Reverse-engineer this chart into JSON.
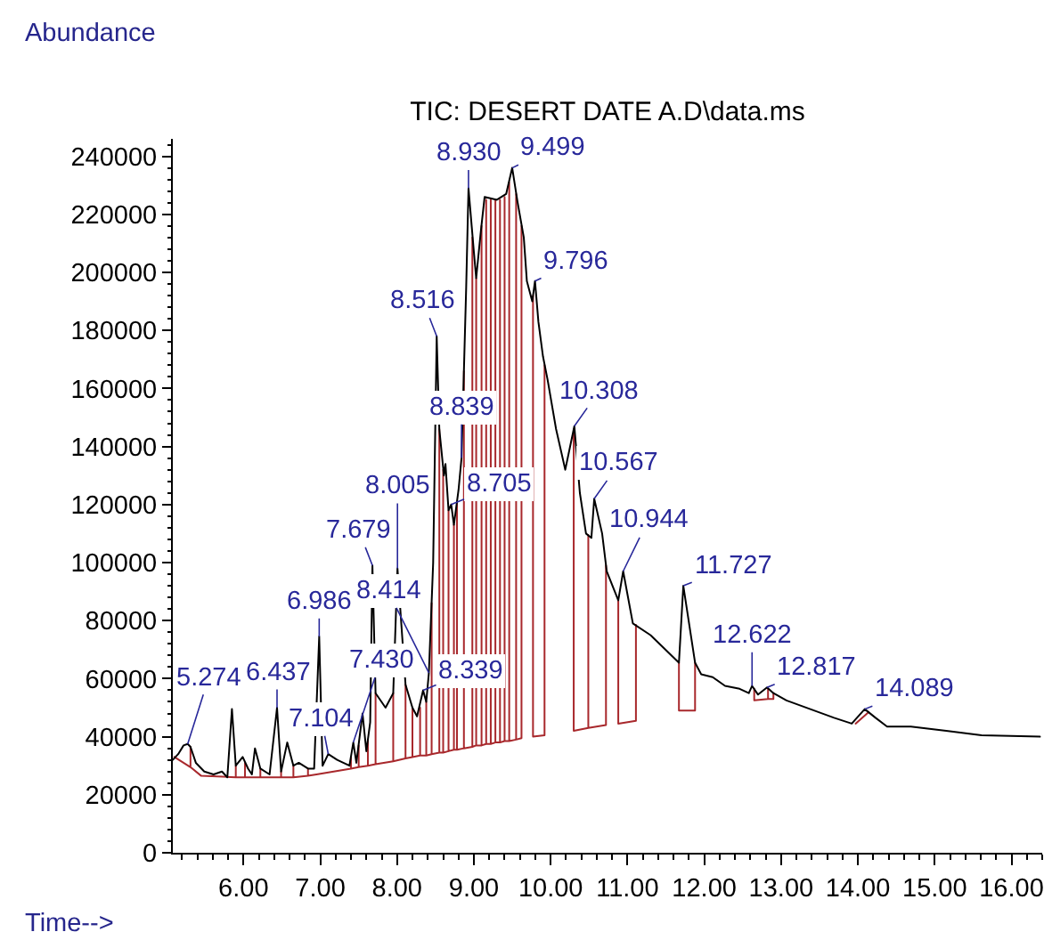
{
  "chart_data": {
    "type": "line",
    "title": "TIC: DESERT DATE A.D\\data.ms",
    "xlabel": "Time-->",
    "ylabel": "Abundance",
    "xlim": [
      5.08,
      16.4
    ],
    "xticks": [
      {
        "value": 6,
        "label": "6.00"
      },
      {
        "value": 7,
        "label": "7.00"
      },
      {
        "value": 8,
        "label": "8.00"
      },
      {
        "value": 9,
        "label": "9.00"
      },
      {
        "value": 10,
        "label": "10.00"
      },
      {
        "value": 11,
        "label": "11.00"
      },
      {
        "value": 12,
        "label": "12.00"
      },
      {
        "value": 13,
        "label": "13.00"
      },
      {
        "value": 14,
        "label": "14.00"
      },
      {
        "value": 15,
        "label": "15.00"
      },
      {
        "value": 16,
        "label": "16.00"
      }
    ],
    "ylim": [
      0,
      246000
    ],
    "yticks": [
      0,
      20000,
      40000,
      60000,
      80000,
      100000,
      120000,
      140000,
      160000,
      180000,
      200000,
      220000,
      240000
    ],
    "series": [
      {
        "color": "#000000",
        "x": [
          5.08,
          5.15,
          5.22,
          5.274,
          5.31,
          5.38,
          5.49,
          5.61,
          5.72,
          5.79,
          5.85,
          5.9,
          5.99,
          6.06,
          6.11,
          6.15,
          6.22,
          6.34,
          6.437,
          6.49,
          6.57,
          6.65,
          6.72,
          6.84,
          6.92,
          6.986,
          7.03,
          7.104,
          7.22,
          7.38,
          7.43,
          7.47,
          7.55,
          7.6,
          7.65,
          7.679,
          7.72,
          7.85,
          7.95,
          8.005,
          8.11,
          8.2,
          8.26,
          8.339,
          8.38,
          8.414,
          8.47,
          8.516,
          8.55,
          8.61,
          8.63,
          8.67,
          8.705,
          8.74,
          8.8,
          8.839,
          8.9,
          8.93,
          9.0,
          9.03,
          9.09,
          9.14,
          9.3,
          9.42,
          9.499,
          9.57,
          9.65,
          9.69,
          9.76,
          9.796,
          9.84,
          9.9,
          9.96,
          10.07,
          10.19,
          10.308,
          10.38,
          10.46,
          10.53,
          10.567,
          10.67,
          10.73,
          10.88,
          10.944,
          11.07,
          11.3,
          11.61,
          11.67,
          11.727,
          11.88,
          11.96,
          12.11,
          12.27,
          12.46,
          12.58,
          12.622,
          12.7,
          12.817,
          12.9,
          13.07,
          13.38,
          13.69,
          13.92,
          14.089,
          14.23,
          14.38,
          14.69,
          15.15,
          15.61,
          16.37
        ],
        "values": [
          32000,
          34000,
          37000,
          37500,
          36500,
          31000,
          28000,
          27000,
          28000,
          26000,
          49500,
          30000,
          33000,
          29000,
          27000,
          36000,
          29000,
          27000,
          50000,
          28000,
          38000,
          30000,
          31000,
          29000,
          29000,
          74500,
          30000,
          34000,
          32000,
          30000,
          38000,
          31000,
          48000,
          35000,
          45000,
          99000,
          55000,
          50000,
          55000,
          98000,
          58000,
          50000,
          47000,
          56000,
          52000,
          62000,
          100000,
          178000,
          146000,
          130000,
          134000,
          118000,
          120000,
          113000,
          125000,
          136000,
          195000,
          229000,
          207000,
          198000,
          214000,
          226000,
          225000,
          227000,
          236000,
          224000,
          212000,
          197000,
          190000,
          197000,
          183000,
          171000,
          163000,
          146000,
          132000,
          147000,
          124000,
          110000,
          108500,
          122000,
          110000,
          97000,
          87000,
          97000,
          79000,
          75000,
          67000,
          65500,
          92000,
          65500,
          61500,
          60500,
          57500,
          56500,
          55000,
          57500,
          54500,
          57000,
          55000,
          52500,
          49500,
          46500,
          44500,
          49500,
          46500,
          43500,
          43500,
          42000,
          40500,
          40000
        ]
      },
      {
        "color": "#a8282c",
        "x": [
          5.1,
          5.31,
          5.31,
          5.31,
          5.45,
          5.9,
          5.9,
          5.9,
          6.02,
          6.02,
          6.02,
          6.22,
          6.22,
          6.22,
          6.49,
          6.49,
          6.49,
          6.65,
          6.65,
          6.65,
          6.84,
          6.84,
          6.84,
          6.95,
          7.4,
          7.4,
          7.4,
          7.5,
          7.5,
          7.5,
          7.62,
          7.62,
          7.62,
          7.72,
          7.72,
          7.72,
          7.95,
          7.95,
          7.95,
          8.11,
          8.11,
          8.11,
          8.2,
          8.2,
          8.2,
          8.3,
          8.3,
          8.3,
          8.38,
          8.38,
          8.38,
          8.45,
          8.45,
          8.45,
          8.55,
          8.55,
          8.55,
          8.6,
          8.6,
          8.6,
          8.67,
          8.67,
          8.67,
          8.74,
          8.74,
          8.74,
          8.78,
          8.78,
          8.78,
          8.87,
          8.87,
          8.87,
          8.98,
          8.98,
          8.98,
          9.03,
          9.03,
          9.03,
          9.1,
          9.1,
          9.1,
          9.16,
          9.16,
          9.16,
          9.22,
          9.22,
          9.22,
          9.28,
          9.28,
          9.28,
          9.34,
          9.34,
          9.34,
          9.4,
          9.4,
          9.4,
          9.46,
          9.46,
          9.46,
          9.55,
          9.55,
          9.55,
          9.62,
          9.62
        ],
        "values": [
          33000,
          29500,
          36500,
          29500,
          26500,
          26000,
          30000,
          26000,
          26000,
          31000,
          26000,
          26000,
          29000,
          26000,
          26000,
          28000,
          26000,
          26000,
          30000,
          26000,
          26500,
          29000,
          26500,
          27000,
          29000,
          33000,
          29000,
          29500,
          37000,
          29500,
          30000,
          39000,
          30000,
          30500,
          55000,
          30500,
          31500,
          55000,
          31500,
          32500,
          58000,
          32500,
          33000,
          50000,
          33000,
          33500,
          50000,
          33500,
          33500,
          52000,
          33500,
          34000,
          86000,
          34000,
          34500,
          146000,
          34500,
          34500,
          132000,
          34500,
          35000,
          118000,
          35000,
          35500,
          113000,
          35500,
          35500,
          121000,
          35500,
          36000,
          166000,
          36000,
          36500,
          212000,
          36500,
          37000,
          198000,
          37000,
          37000,
          216000,
          37000,
          37500,
          225000,
          37500,
          37500,
          225000,
          37500,
          38000,
          225000,
          38000,
          38000,
          225000,
          38000,
          38500,
          226000,
          38500,
          38500,
          231000,
          38500,
          39000,
          227000,
          39000,
          39500,
          216000
        ]
      },
      {
        "color": "#a8282c",
        "x": [
          9.77,
          9.77,
          9.92,
          9.92
        ],
        "values": [
          192000,
          40000,
          40500,
          168000
        ]
      },
      {
        "color": "#a8282c",
        "x": [
          10.3,
          10.3,
          10.49,
          10.49,
          10.49,
          10.72,
          10.72
        ],
        "values": [
          146000,
          42000,
          43000,
          109500,
          43000,
          44000,
          99000
        ]
      },
      {
        "color": "#a8282c",
        "x": [
          10.88,
          10.88,
          11.11,
          11.11
        ],
        "values": [
          87000,
          44500,
          45500,
          78500
        ]
      },
      {
        "color": "#a8282c",
        "x": [
          11.67,
          11.67,
          11.88,
          11.88
        ],
        "values": [
          65500,
          49000,
          49000,
          65500
        ]
      },
      {
        "color": "#a8282c",
        "x": [
          12.65,
          12.65,
          12.83,
          12.83,
          12.83,
          12.9,
          12.9
        ],
        "values": [
          56500,
          52500,
          53000,
          56500,
          53000,
          53000,
          55000
        ]
      },
      {
        "color": "#a8282c",
        "x": [
          13.97,
          14.14
        ],
        "values": [
          44500,
          48500
        ]
      }
    ],
    "annotations": [
      {
        "text": "5.274",
        "x": 5.274,
        "y": 37500
      },
      {
        "text": "6.437",
        "x": 6.437,
        "y": 50000
      },
      {
        "text": "6.986",
        "x": 6.986,
        "y": 74500
      },
      {
        "text": "7.104",
        "x": 7.104,
        "y": 34000
      },
      {
        "text": "7.430",
        "x": 7.43,
        "y": 38000
      },
      {
        "text": "7.679",
        "x": 7.679,
        "y": 99000
      },
      {
        "text": "8.005",
        "x": 8.005,
        "y": 98000
      },
      {
        "text": "8.339",
        "x": 8.339,
        "y": 56000
      },
      {
        "text": "8.414",
        "x": 8.414,
        "y": 62000
      },
      {
        "text": "8.516",
        "x": 8.516,
        "y": 178000
      },
      {
        "text": "8.705",
        "x": 8.705,
        "y": 120000
      },
      {
        "text": "8.839",
        "x": 8.839,
        "y": 136000
      },
      {
        "text": "8.930",
        "x": 8.93,
        "y": 229000
      },
      {
        "text": "9.499",
        "x": 9.499,
        "y": 236000
      },
      {
        "text": "9.796",
        "x": 9.796,
        "y": 197000
      },
      {
        "text": "10.308",
        "x": 10.308,
        "y": 147000
      },
      {
        "text": "10.567",
        "x": 10.567,
        "y": 122000
      },
      {
        "text": "10.944",
        "x": 10.944,
        "y": 97000
      },
      {
        "text": "11.727",
        "x": 11.727,
        "y": 92000
      },
      {
        "text": "12.622",
        "x": 12.622,
        "y": 57500
      },
      {
        "text": "12.817",
        "x": 12.817,
        "y": 57000
      },
      {
        "text": "14.089",
        "x": 14.089,
        "y": 49500
      }
    ]
  }
}
